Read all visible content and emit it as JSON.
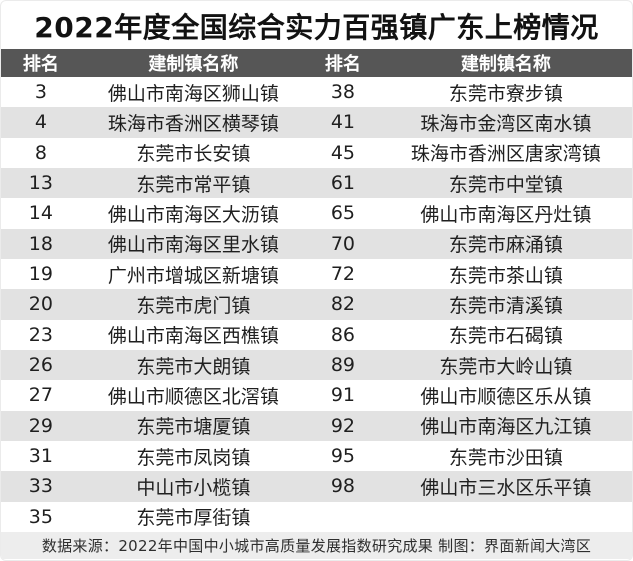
{
  "title": "2022年度全国综合实力百强镇广东上榜情况",
  "table": {
    "headers": [
      "排名",
      "建制镇名称",
      "排名",
      "建制镇名称"
    ],
    "rows": [
      {
        "rank_left": "3",
        "town_left": "佛山市南海区狮山镇",
        "rank_right": "38",
        "town_right": "东莞市寮步镇"
      },
      {
        "rank_left": "4",
        "town_left": "珠海市香洲区横琴镇",
        "rank_right": "41",
        "town_right": "珠海市金湾区南水镇"
      },
      {
        "rank_left": "8",
        "town_left": "东莞市长安镇",
        "rank_right": "45",
        "town_right": "珠海市香洲区唐家湾镇"
      },
      {
        "rank_left": "13",
        "town_left": "东莞市常平镇",
        "rank_right": "61",
        "town_right": "东莞市中堂镇"
      },
      {
        "rank_left": "14",
        "town_left": "佛山市南海区大沥镇",
        "rank_right": "65",
        "town_right": "佛山市南海区丹灶镇"
      },
      {
        "rank_left": "18",
        "town_left": "佛山市南海区里水镇",
        "rank_right": "70",
        "town_right": "东莞市麻涌镇"
      },
      {
        "rank_left": "19",
        "town_left": "广州市增城区新塘镇",
        "rank_right": "72",
        "town_right": "东莞市茶山镇"
      },
      {
        "rank_left": "20",
        "town_left": "东莞市虎门镇",
        "rank_right": "82",
        "town_right": "东莞市清溪镇"
      },
      {
        "rank_left": "23",
        "town_left": "佛山市南海区西樵镇",
        "rank_right": "86",
        "town_right": "东莞市石碣镇"
      },
      {
        "rank_left": "26",
        "town_left": "东莞市大朗镇",
        "rank_right": "89",
        "town_right": "东莞市大岭山镇"
      },
      {
        "rank_left": "27",
        "town_left": "佛山市顺德区北滘镇",
        "rank_right": "91",
        "town_right": "佛山市顺德区乐从镇"
      },
      {
        "rank_left": "29",
        "town_left": "东莞市塘厦镇",
        "rank_right": "92",
        "town_right": "佛山市南海区九江镇"
      },
      {
        "rank_left": "31",
        "town_left": "东莞市凤岗镇",
        "rank_right": "95",
        "town_right": "东莞市沙田镇"
      },
      {
        "rank_left": "33",
        "town_left": "中山市小榄镇",
        "rank_right": "98",
        "town_right": "佛山市三水区乐平镇"
      },
      {
        "rank_left": "35",
        "town_left": "东莞市厚街镇",
        "rank_right": "",
        "town_right": ""
      }
    ]
  },
  "footer": {
    "text": "数据来源：2022年中国中小城市高质量发展指数研究成果 制图：界面新闻大湾区"
  },
  "colors": {
    "header_bg": "#565656",
    "header_fg": "#ffffff",
    "stripe_bg": "#e2e2e2",
    "footer_bg": "#ededed",
    "title_color": "#121212"
  },
  "chart_data": {
    "type": "table",
    "title": "2022年度全国综合实力百强镇广东上榜情况",
    "columns": [
      "排名",
      "建制镇名称"
    ],
    "rows": [
      [
        3,
        "佛山市南海区狮山镇"
      ],
      [
        4,
        "珠海市香洲区横琴镇"
      ],
      [
        8,
        "东莞市长安镇"
      ],
      [
        13,
        "东莞市常平镇"
      ],
      [
        14,
        "佛山市南海区大沥镇"
      ],
      [
        18,
        "佛山市南海区里水镇"
      ],
      [
        19,
        "广州市增城区新塘镇"
      ],
      [
        20,
        "东莞市虎门镇"
      ],
      [
        23,
        "佛山市南海区西樵镇"
      ],
      [
        26,
        "东莞市大朗镇"
      ],
      [
        27,
        "佛山市顺德区北滘镇"
      ],
      [
        29,
        "东莞市塘厦镇"
      ],
      [
        31,
        "东莞市凤岗镇"
      ],
      [
        33,
        "中山市小榄镇"
      ],
      [
        35,
        "东莞市厚街镇"
      ],
      [
        38,
        "东莞市寮步镇"
      ],
      [
        41,
        "珠海市金湾区南水镇"
      ],
      [
        45,
        "珠海市香洲区唐家湾镇"
      ],
      [
        61,
        "东莞市中堂镇"
      ],
      [
        65,
        "佛山市南海区丹灶镇"
      ],
      [
        70,
        "东莞市麻涌镇"
      ],
      [
        72,
        "东莞市茶山镇"
      ],
      [
        82,
        "东莞市清溪镇"
      ],
      [
        86,
        "东莞市石碣镇"
      ],
      [
        89,
        "东莞市大岭山镇"
      ],
      [
        91,
        "佛山市顺德区乐从镇"
      ],
      [
        92,
        "佛山市南海区九江镇"
      ],
      [
        95,
        "东莞市沙田镇"
      ],
      [
        98,
        "佛山市三水区乐平镇"
      ]
    ],
    "source_note": "数据来源：2022年中国中小城市高质量发展指数研究成果 制图：界面新闻大湾区"
  }
}
